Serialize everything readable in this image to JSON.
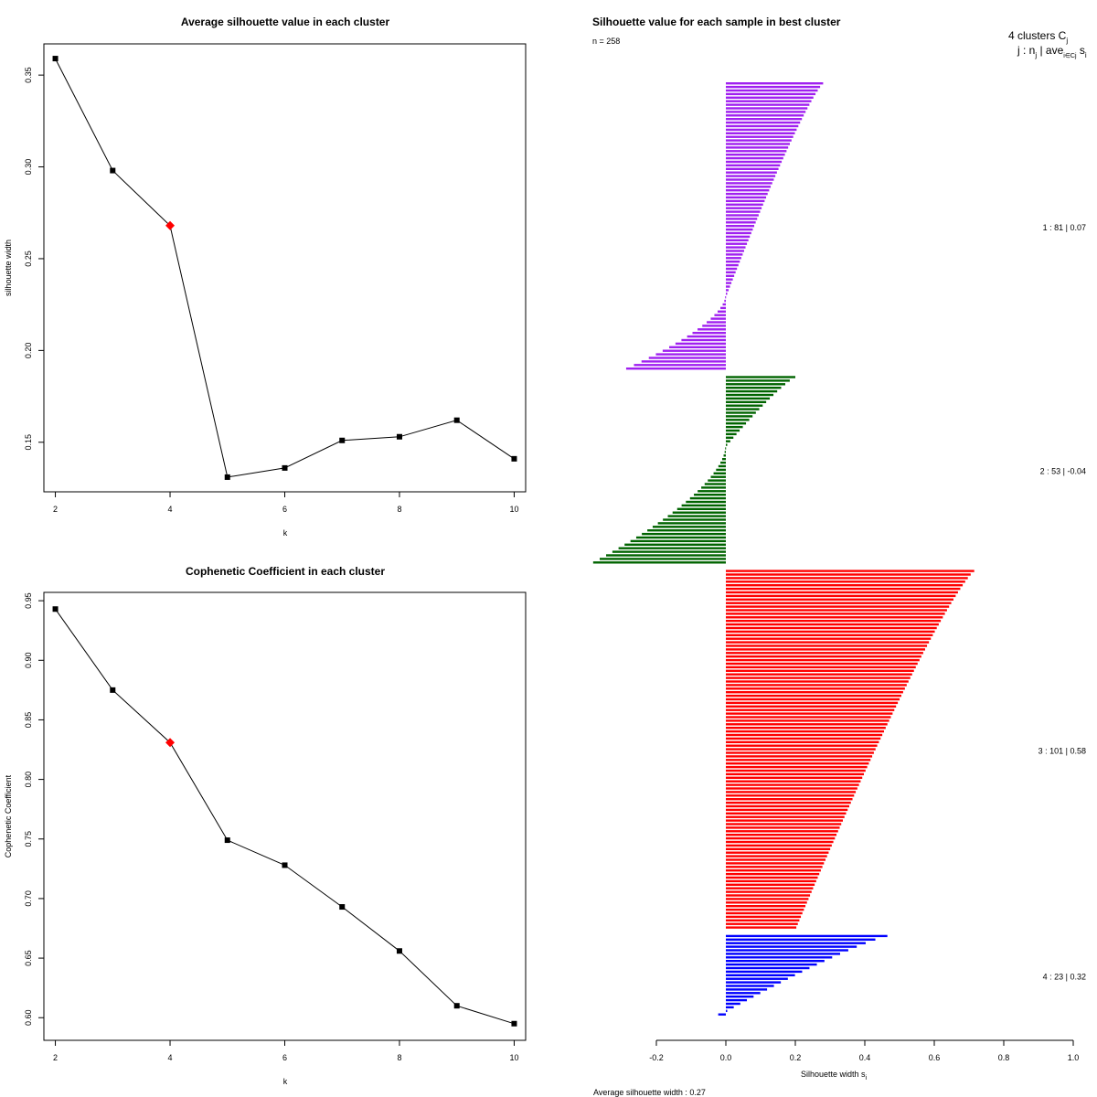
{
  "chart_data": [
    {
      "type": "line",
      "title": "Average silhouette value in each cluster",
      "xlabel": "k",
      "ylabel": "silhouette width",
      "x": [
        2,
        3,
        4,
        5,
        6,
        7,
        8,
        9,
        10
      ],
      "y": [
        0.359,
        0.298,
        0.268,
        0.131,
        0.136,
        0.151,
        0.153,
        0.162,
        0.141
      ],
      "highlight_k": 4,
      "xlim": [
        1.8,
        10.2
      ],
      "ylim": [
        0.123,
        0.367
      ],
      "xticks": [
        2,
        4,
        6,
        8,
        10
      ],
      "yticks": [
        0.15,
        0.2,
        0.25,
        0.3,
        0.35
      ],
      "ytick_labels": [
        "0.15",
        "0.20",
        "0.25",
        "0.30",
        "0.35"
      ]
    },
    {
      "type": "line",
      "title": "Cophenetic Coefficient in each cluster",
      "xlabel": "k",
      "ylabel": "Cophenetic Coefficient",
      "x": [
        2,
        3,
        4,
        5,
        6,
        7,
        8,
        9,
        10
      ],
      "y": [
        0.943,
        0.875,
        0.831,
        0.749,
        0.728,
        0.693,
        0.656,
        0.61,
        0.595
      ],
      "highlight_k": 4,
      "xlim": [
        1.8,
        10.2
      ],
      "ylim": [
        0.581,
        0.957
      ],
      "xticks": [
        2,
        4,
        6,
        8,
        10
      ],
      "yticks": [
        0.6,
        0.65,
        0.7,
        0.75,
        0.8,
        0.85,
        0.9,
        0.95
      ],
      "ytick_labels": [
        "0.60",
        "0.65",
        "0.70",
        "0.75",
        "0.80",
        "0.85",
        "0.90",
        "0.95"
      ]
    },
    {
      "type": "bar",
      "orientation": "horizontal",
      "title": "Silhouette value for each sample in best cluster",
      "n_label": "n = 258",
      "header_line1": "4  clusters  C",
      "header_line1_sub": "j",
      "header_line2": "j :  n",
      "header_line2_sub": "j",
      "header_line2_mid": " | ave",
      "header_line2_mid_sub": "i∈Cj",
      "header_line2_end": " s",
      "header_line2_end_sub": "i",
      "xlabel": "Silhouette width s",
      "xlabel_sub": "i",
      "footer_prefix": "Average silhouette width : ",
      "footer_value": "0.27",
      "xlim": [
        -0.2,
        1.0
      ],
      "xticks": [
        -0.2,
        0.0,
        0.2,
        0.4,
        0.6,
        0.8,
        1.0
      ],
      "xtick_labels": [
        "-0.2",
        "0.0",
        "0.2",
        "0.4",
        "0.6",
        "0.8",
        "1.0"
      ],
      "clusters": [
        {
          "id": 1,
          "n": 81,
          "ave": "0.07",
          "label": "1 :  81  |  0.07",
          "color": "#a020f0",
          "max": 0.28,
          "min": -0.285,
          "n_pos": 60
        },
        {
          "id": 2,
          "n": 53,
          "ave": "-0.04",
          "label": "2 :  53  |  -0.04",
          "color": "#006400",
          "max": 0.2,
          "min": -0.38,
          "n_pos": 20
        },
        {
          "id": 3,
          "n": 101,
          "ave": "0.58",
          "label": "3 :  101  |  0.58",
          "color": "#ff0000",
          "max": 0.715,
          "min": 0.2,
          "n_pos": 101
        },
        {
          "id": 4,
          "n": 23,
          "ave": "0.32",
          "label": "4 :  23  |  0.32",
          "color": "#0000ff",
          "max": 0.465,
          "min": -0.02,
          "n_pos": 22
        }
      ]
    }
  ]
}
